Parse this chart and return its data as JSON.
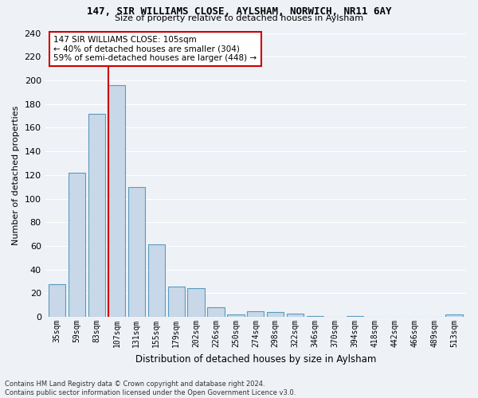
{
  "title1": "147, SIR WILLIAMS CLOSE, AYLSHAM, NORWICH, NR11 6AY",
  "title2": "Size of property relative to detached houses in Aylsham",
  "xlabel": "Distribution of detached houses by size in Aylsham",
  "ylabel": "Number of detached properties",
  "bins": [
    "35sqm",
    "59sqm",
    "83sqm",
    "107sqm",
    "131sqm",
    "155sqm",
    "179sqm",
    "202sqm",
    "226sqm",
    "250sqm",
    "274sqm",
    "298sqm",
    "322sqm",
    "346sqm",
    "370sqm",
    "394sqm",
    "418sqm",
    "442sqm",
    "466sqm",
    "489sqm",
    "513sqm"
  ],
  "bar_values": [
    28,
    122,
    172,
    196,
    110,
    61,
    26,
    24,
    8,
    2,
    5,
    4,
    3,
    1,
    0,
    1,
    0,
    0,
    0,
    0,
    2
  ],
  "bar_color": "#c8d8e8",
  "bar_edge_color": "#5a9abf",
  "vline_color": "#cc0000",
  "annotation_text": "147 SIR WILLIAMS CLOSE: 105sqm\n← 40% of detached houses are smaller (304)\n59% of semi-detached houses are larger (448) →",
  "annotation_box_color": "#ffffff",
  "annotation_box_edge": "#cc0000",
  "ylim": [
    0,
    240
  ],
  "yticks": [
    0,
    20,
    40,
    60,
    80,
    100,
    120,
    140,
    160,
    180,
    200,
    220,
    240
  ],
  "footnote": "Contains HM Land Registry data © Crown copyright and database right 2024.\nContains public sector information licensed under the Open Government Licence v3.0.",
  "bg_color": "#eef2f7",
  "grid_color": "#ffffff"
}
